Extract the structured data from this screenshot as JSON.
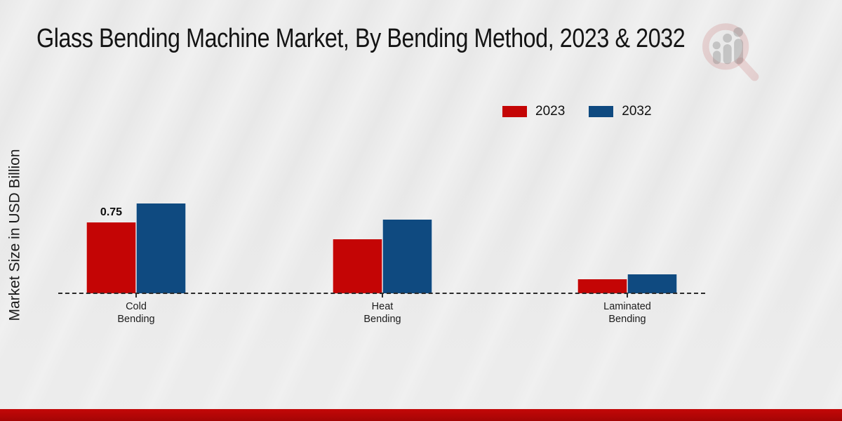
{
  "title": "Glass Bending Machine Market, By Bending Method, 2023 & 2032",
  "y_axis_label": "Market Size in USD Billion",
  "legend": [
    {
      "label": "2023",
      "color": "#c40505"
    },
    {
      "label": "2032",
      "color": "#0f4a80"
    }
  ],
  "colors": {
    "background": "#e8e8e8",
    "series_2023": "#c40505",
    "series_2032": "#0f4a80",
    "baseline": "#2b2b2b",
    "footer_band": "#b30606",
    "watermark_ring": "rgba(190,80,80,0.18)",
    "watermark_bars": "rgba(135,135,135,0.38)"
  },
  "chart_data": {
    "type": "bar",
    "categories": [
      "Cold Bending",
      "Heat Bending",
      "Laminated Bending"
    ],
    "series": [
      {
        "name": "2023",
        "color": "#c40505",
        "values": [
          0.75,
          0.57,
          0.15
        ]
      },
      {
        "name": "2032",
        "color": "#0f4a80",
        "values": [
          0.95,
          0.78,
          0.2
        ]
      }
    ],
    "bar_value_labels": [
      {
        "series": "2023",
        "category": "Cold Bending",
        "label": "0.75"
      }
    ],
    "title": "Glass Bending Machine Market, By Bending Method, 2023 & 2032",
    "xlabel": "",
    "ylabel": "Market Size in USD Billion",
    "ylim": [
      0,
      1.2
    ],
    "grid": false,
    "baseline_style": "dashed",
    "legend_position": "top-right"
  }
}
